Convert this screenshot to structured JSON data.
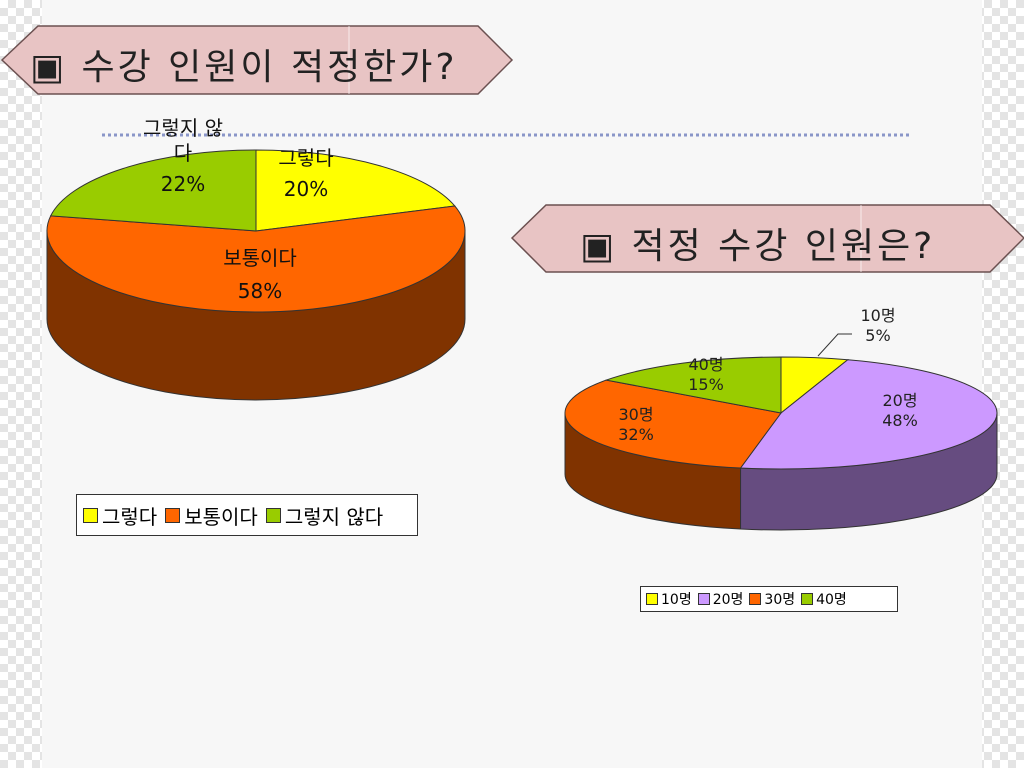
{
  "slide": {
    "title1": "▣ 수강 인원이 적정한가?",
    "title2": "▣ 적정 수강 인원은?"
  },
  "colors": {
    "banner_fill": "#e8c4c4",
    "dotted_line": "#8a96c8"
  },
  "chart_data": [
    {
      "type": "pie",
      "style": "3d",
      "categories": [
        "그렇다",
        "보통이다",
        "그렇지 않다"
      ],
      "values": [
        20,
        58,
        22
      ],
      "unit": "%",
      "colors": [
        "#ffff00",
        "#ff6600",
        "#99cc00"
      ],
      "side_colors": [
        "#808000",
        "#803300",
        "#4d6600"
      ],
      "labels": [
        {
          "name": "그렇다",
          "value": "20%"
        },
        {
          "name": "보통이다",
          "value": "58%"
        },
        {
          "name": "그렇지 않다",
          "name_line1": "그렇지 않",
          "name_line2": "다",
          "value": "22%"
        }
      ],
      "legend": {
        "placement": "bottom",
        "entries": [
          "그렇다",
          "보통이다",
          "그렇지 않다"
        ]
      }
    },
    {
      "type": "pie",
      "style": "3d",
      "categories": [
        "10명",
        "20명",
        "30명",
        "40명"
      ],
      "values": [
        5,
        48,
        32,
        15
      ],
      "unit": "%",
      "colors": [
        "#ffff00",
        "#cc99ff",
        "#ff6600",
        "#99cc00"
      ],
      "side_colors": [
        "#808000",
        "#664c80",
        "#803300",
        "#4d6600"
      ],
      "labels": [
        {
          "name": "10명",
          "value": "5%"
        },
        {
          "name": "20명",
          "value": "48%"
        },
        {
          "name": "30명",
          "value": "32%"
        },
        {
          "name": "40명",
          "value": "15%"
        }
      ],
      "legend": {
        "placement": "bottom",
        "entries": [
          "10명",
          "20명",
          "30명",
          "40명"
        ]
      }
    }
  ]
}
